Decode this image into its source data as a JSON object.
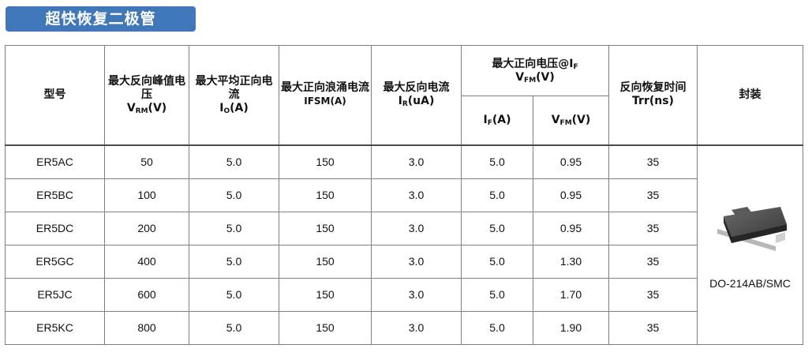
{
  "banner": {
    "title": "超快恢复二极管"
  },
  "headers": {
    "model": "型号",
    "vrm": {
      "main": "最大反向峰值电压",
      "sym": "V",
      "sub": "RM",
      "unit": "(V)"
    },
    "io": {
      "main": "最大平均正向电流",
      "sym": "I",
      "sub": "O",
      "unit": "(A)"
    },
    "ifsm": {
      "main": "最大正向浪涌电流",
      "line2": "IFSM(A)"
    },
    "ir": {
      "main": "最大反向电流",
      "sym": "I",
      "sub": "R",
      "unit": "(uA)"
    },
    "vfm_group": {
      "main": "最大正向电压@I",
      "main_sub": "F",
      "sym": "V",
      "sub": "FM",
      "unit": "(V)"
    },
    "if_col": {
      "sym": "I",
      "sub": "F",
      "unit": "(A)"
    },
    "vfm_col": {
      "sym": "V",
      "sub": "FM",
      "unit": "(V)"
    },
    "trr": {
      "main": "反向恢复时间",
      "line2": "Trr(ns)"
    },
    "package": "封装"
  },
  "rows": [
    {
      "model": "ER5AC",
      "vrm": "50",
      "io": "5.0",
      "ifsm": "150",
      "ir": "3.0",
      "if": "5.0",
      "vfm": "0.95",
      "trr": "35"
    },
    {
      "model": "ER5BC",
      "vrm": "100",
      "io": "5.0",
      "ifsm": "150",
      "ir": "3.0",
      "if": "5.0",
      "vfm": "0.95",
      "trr": "35"
    },
    {
      "model": "ER5DC",
      "vrm": "200",
      "io": "5.0",
      "ifsm": "150",
      "ir": "3.0",
      "if": "5.0",
      "vfm": "0.95",
      "trr": "35"
    },
    {
      "model": "ER5GC",
      "vrm": "400",
      "io": "5.0",
      "ifsm": "150",
      "ir": "3.0",
      "if": "5.0",
      "vfm": "1.30",
      "trr": "35"
    },
    {
      "model": "ER5JC",
      "vrm": "600",
      "io": "5.0",
      "ifsm": "150",
      "ir": "3.0",
      "if": "5.0",
      "vfm": "1.70",
      "trr": "35"
    },
    {
      "model": "ER5KC",
      "vrm": "800",
      "io": "5.0",
      "ifsm": "150",
      "ir": "3.0",
      "if": "5.0",
      "vfm": "1.90",
      "trr": "35"
    }
  ],
  "package": {
    "label": "DO-214AB/SMC",
    "icon": "smd-diode-package-icon"
  },
  "colors": {
    "banner": "#3f77b8",
    "border": "#7f7f7f"
  }
}
